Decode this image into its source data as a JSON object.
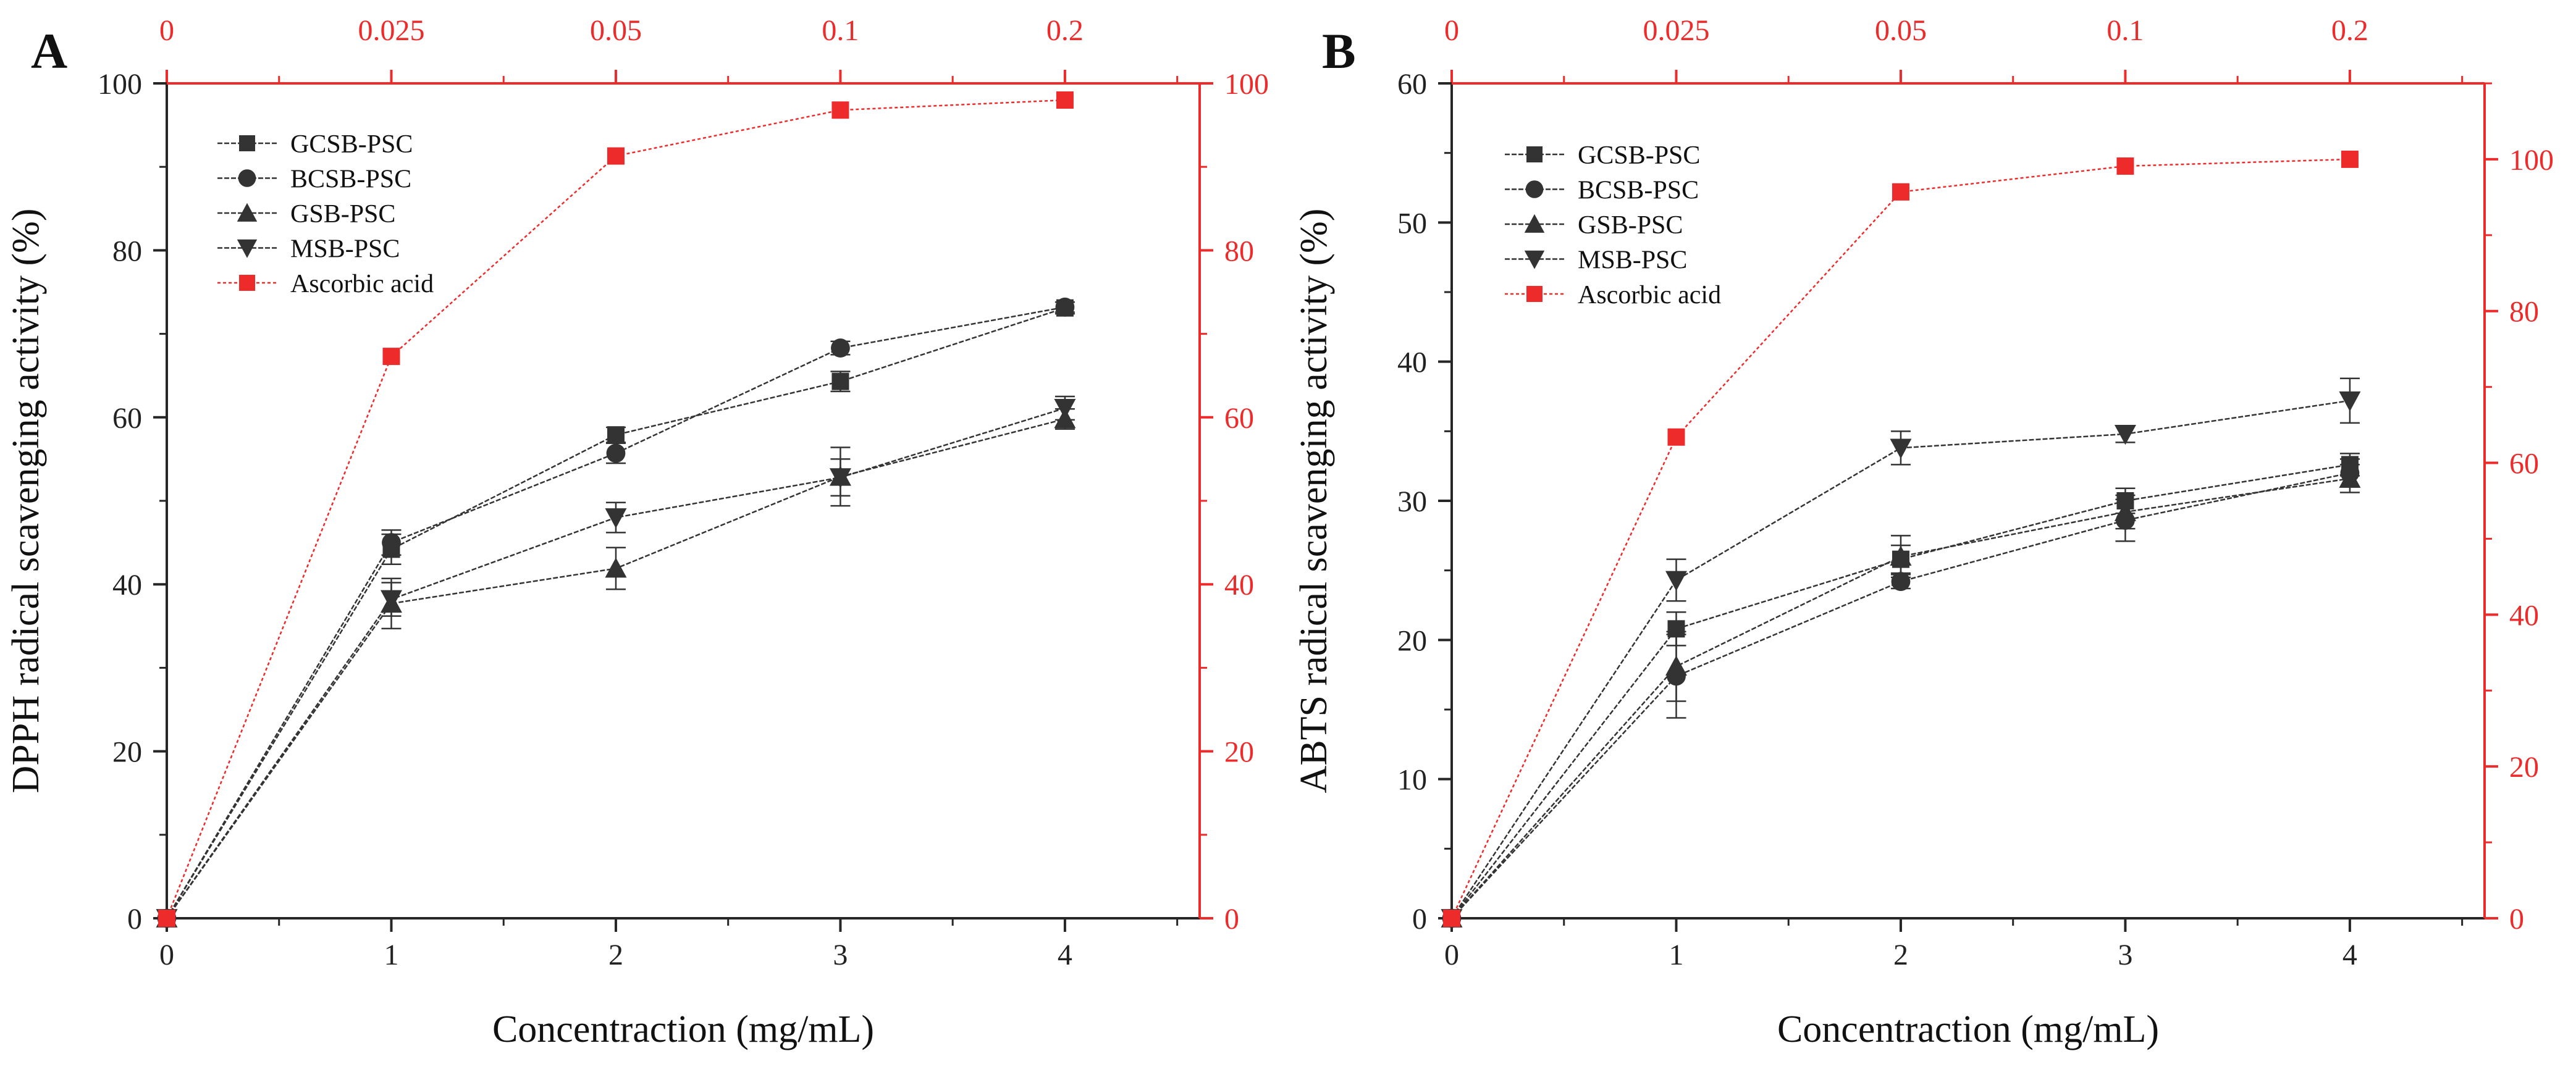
{
  "panels": [
    {
      "panel_label": "A",
      "colors": {
        "main": "#333333",
        "ascorbic": "#ee2b2b",
        "axis": "#262626"
      },
      "chart_data": {
        "type": "line",
        "xlabel": "Concentraction (mg/mL)",
        "ylabel": "DPPH radical scavenging activity (%)",
        "x": [
          0,
          1,
          2,
          3,
          4
        ],
        "xlim": [
          0,
          4.6
        ],
        "ylim": [
          0,
          100
        ],
        "y_ticks": [
          0,
          20,
          40,
          60,
          80,
          100
        ],
        "top_axis_labels": [
          "0",
          "0.025",
          "0.05",
          "0.1",
          "0.2"
        ],
        "right_ylim": [
          0,
          100
        ],
        "right_ticks": [
          0,
          20,
          40,
          60,
          80,
          100
        ],
        "grid": false,
        "legend_position": "top-left",
        "series": [
          {
            "name": "GCSB-PSC",
            "marker": "square",
            "values": [
              0,
              44.2,
              57.9,
              64.3,
              73.1
            ],
            "errors": [
              0,
              1.8,
              0.9,
              1.2,
              0.7
            ]
          },
          {
            "name": "BCSB-PSC",
            "marker": "circle",
            "values": [
              0,
              45.0,
              55.7,
              68.3,
              73.2
            ],
            "errors": [
              0,
              1.5,
              1.2,
              0.8,
              0.6
            ]
          },
          {
            "name": "GSB-PSC",
            "marker": "triangle-up",
            "values": [
              0,
              37.7,
              41.9,
              52.9,
              59.8
            ],
            "errors": [
              0,
              3.0,
              2.5,
              3.5,
              1.2
            ]
          },
          {
            "name": "MSB-PSC",
            "marker": "triangle-down",
            "values": [
              0,
              38.2,
              48.0,
              52.8,
              61.1
            ],
            "errors": [
              0,
              2.0,
              1.8,
              2.2,
              1.4
            ]
          },
          {
            "name": "Ascorbic acid",
            "marker": "square",
            "axis": "right",
            "values": [
              0,
              67.3,
              91.3,
              96.8,
              98.0
            ],
            "errors": [
              0,
              0,
              0,
              0,
              0
            ]
          }
        ]
      }
    },
    {
      "panel_label": "B",
      "colors": {
        "main": "#333333",
        "ascorbic": "#ee2b2b",
        "axis": "#262626"
      },
      "chart_data": {
        "type": "line",
        "xlabel": "Concentraction (mg/mL)",
        "ylabel": "ABTS radical scavenging activity (%)",
        "x": [
          0,
          1,
          2,
          3,
          4
        ],
        "xlim": [
          0,
          4.6
        ],
        "ylim": [
          0,
          60
        ],
        "y_ticks": [
          0,
          10,
          20,
          30,
          40,
          50,
          60
        ],
        "top_axis_labels": [
          "0",
          "0.025",
          "0.05",
          "0.1",
          "0.2"
        ],
        "right_ylim": [
          0,
          110
        ],
        "right_ticks": [
          0,
          20,
          40,
          60,
          80,
          100
        ],
        "grid": false,
        "legend_position": "top-left",
        "series": [
          {
            "name": "GCSB-PSC",
            "marker": "square",
            "values": [
              0,
              20.8,
              25.8,
              30.0,
              32.6
            ],
            "errors": [
              0,
              1.2,
              1.0,
              0.9,
              0.8
            ]
          },
          {
            "name": "BCSB-PSC",
            "marker": "circle",
            "values": [
              0,
              17.4,
              24.2,
              28.6,
              32.0
            ],
            "errors": [
              0,
              3.0,
              0.5,
              1.5,
              1.0
            ]
          },
          {
            "name": "GSB-PSC",
            "marker": "triangle-up",
            "values": [
              0,
              18.1,
              26.0,
              29.2,
              31.6
            ],
            "errors": [
              0,
              2.5,
              1.5,
              1.2,
              1.0
            ]
          },
          {
            "name": "MSB-PSC",
            "marker": "triangle-down",
            "values": [
              0,
              24.3,
              33.8,
              34.8,
              37.2
            ],
            "errors": [
              0,
              1.5,
              1.2,
              0.6,
              1.6
            ]
          },
          {
            "name": "Ascorbic acid",
            "marker": "square",
            "axis": "right",
            "values": [
              0,
              63.4,
              95.7,
              99.1,
              100.0
            ],
            "errors": [
              0,
              0,
              0,
              0,
              0
            ]
          }
        ]
      }
    }
  ]
}
